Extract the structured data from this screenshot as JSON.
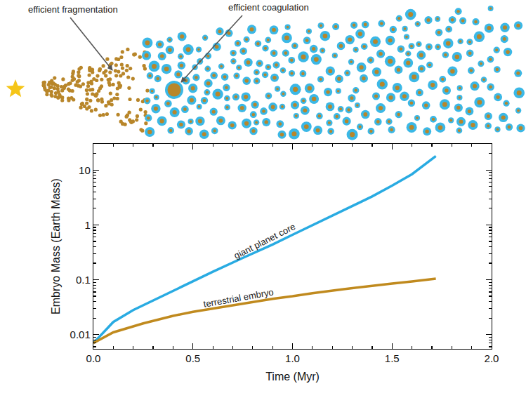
{
  "chart_data": {
    "type": "line",
    "x_label": "Time (Myr)",
    "y_label": "Embryo Mass (Earth Mass)",
    "log": "y",
    "grid": false,
    "xlim": [
      0,
      2
    ],
    "ylim": [
      0.0055,
      30
    ],
    "xticks": [
      {
        "value": 0,
        "label": "0.0"
      },
      0.5,
      {
        "value": 1,
        "label": "1.0"
      },
      1.5,
      {
        "value": 2,
        "label": "2.0"
      }
    ],
    "yticks": [
      0.01,
      0.1,
      1,
      10
    ],
    "series": [
      {
        "name": "giant planet core",
        "color": "#29abe2",
        "x": [
          0,
          0.05,
          0.1,
          0.2,
          0.3,
          0.4,
          0.5,
          0.6,
          0.75,
          0.9,
          1.0,
          1.1,
          1.25,
          1.4,
          1.5,
          1.6,
          1.72
        ],
        "values": [
          0.007,
          0.011,
          0.017,
          0.028,
          0.042,
          0.064,
          0.095,
          0.14,
          0.25,
          0.44,
          0.66,
          0.98,
          1.8,
          3.3,
          5.2,
          8.4,
          18
        ]
      },
      {
        "name": "terrestrial embryo",
        "color": "#c08a1e",
        "x": [
          0,
          0.1,
          0.25,
          0.4,
          0.5,
          0.6,
          0.75,
          0.9,
          1.0,
          1.1,
          1.25,
          1.4,
          1.5,
          1.6,
          1.72
        ],
        "values": [
          0.007,
          0.011,
          0.016,
          0.022,
          0.026,
          0.03,
          0.037,
          0.045,
          0.05,
          0.057,
          0.067,
          0.078,
          0.085,
          0.093,
          0.105
        ]
      }
    ],
    "annotations": [
      {
        "text": "giant planet core",
        "x": 0.86,
        "y": 0.5
      },
      {
        "text": "terrestrial embryo",
        "x": 0.73,
        "y": 0.047
      }
    ],
    "illustration": {
      "labels": [
        "efficient fragmentation",
        "efficient coagulation"
      ]
    }
  }
}
